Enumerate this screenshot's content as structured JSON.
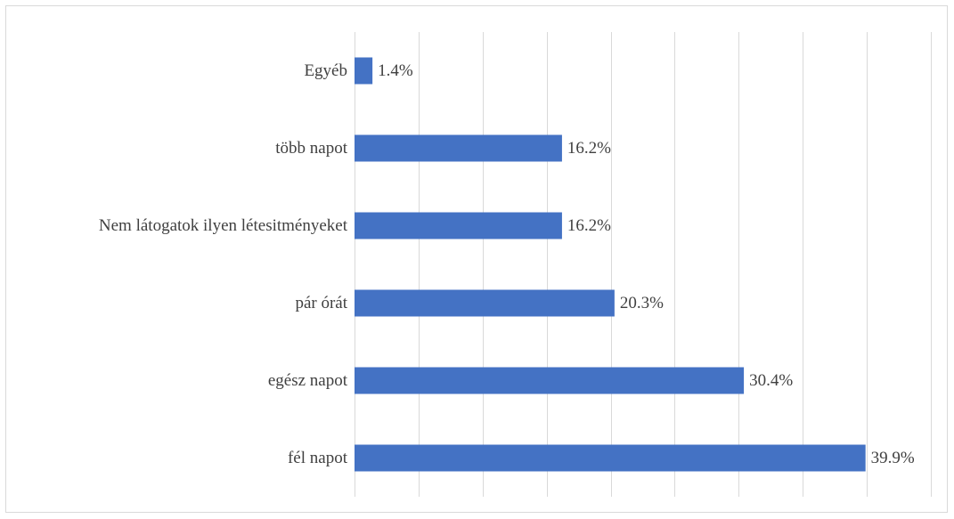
{
  "chart_data": {
    "type": "bar",
    "orientation": "horizontal",
    "categories": [
      "Egyéb",
      "több napot",
      "Nem látogatok ilyen létesitményeket",
      "pár órát",
      "egész napot",
      "fél napot"
    ],
    "values": [
      1.4,
      16.2,
      16.2,
      20.3,
      30.4,
      39.9
    ],
    "value_labels": [
      "1.4%",
      "16.2%",
      "16.2%",
      "20.3%",
      "30.4%",
      "39.9%"
    ],
    "unit": "%",
    "xlim": [
      0,
      45
    ],
    "x_grid_step": 5,
    "grid": true,
    "legend": "none",
    "bar_color": "#4472c4",
    "grid_color": "#d9d9d9",
    "text_color": "#404040"
  }
}
